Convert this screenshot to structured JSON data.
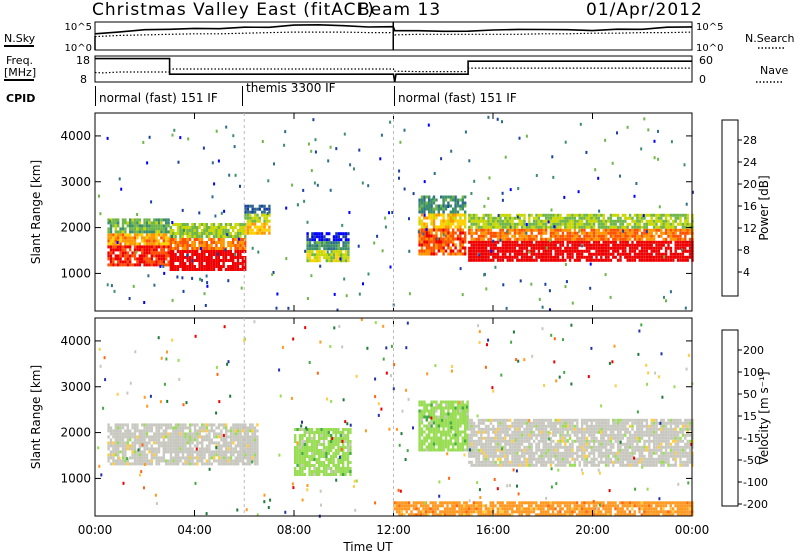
{
  "header": {
    "radar": "Christmas Valley East (fitACF)",
    "beam": "Beam 13",
    "date": "01/Apr/2012"
  },
  "params": {
    "nsky_label": "N.Sky",
    "nsky_ticks": [
      "10^5",
      "10^0"
    ],
    "nsearch_label": "N.Search",
    "nsearch_ticks": [
      "10^5",
      "10^0"
    ],
    "freq_label": "Freq.",
    "freq_unit": "[MHz]",
    "freq_ticks": [
      "18",
      "8"
    ],
    "nave_label": "Nave",
    "nave_ticks": [
      "60",
      "0"
    ],
    "cpid_label": "CPID",
    "cpid_segments": [
      "normal (fast) 151 IF",
      "themis 3300 IF",
      "normal (fast) 151 IF"
    ]
  },
  "axes": {
    "xlabel": "Time UT",
    "ylabel": "Slant Range [km]",
    "x_ticks": [
      "00:00",
      "04:00",
      "08:00",
      "12:00",
      "16:00",
      "20:00",
      "00:00"
    ],
    "y_ticks": [
      "4000",
      "3000",
      "2000",
      "1000"
    ]
  },
  "colorbars": {
    "power": {
      "label": "Power [dB]",
      "ticks": [
        "28",
        "24",
        "20",
        "16",
        "12",
        "8",
        "4"
      ],
      "colors": [
        "#0000ff",
        "#1a3fa0",
        "#2e6e8a",
        "#3d8f6b",
        "#6fb64a",
        "#c8d800",
        "#ffd000",
        "#ff9500",
        "#ff5000",
        "#ee0000"
      ]
    },
    "velocity": {
      "label": "Velocity [m s⁻¹]",
      "ticks": [
        "200",
        "100",
        "50",
        "15",
        "-15",
        "-50",
        "-100",
        "-200"
      ],
      "colors": [
        "#2233aa",
        "#1e7a3a",
        "#44aa44",
        "#99dd55",
        "#c8c8c0",
        "#ffcc44",
        "#ff9922",
        "#ff6611",
        "#ee0000"
      ]
    }
  },
  "chart_data": [
    {
      "type": "line",
      "title": "N.Sky / N.Search",
      "x_hours": [
        0,
        1,
        2,
        3,
        4,
        5,
        6,
        7,
        8,
        9,
        10,
        11,
        11.99,
        12.05,
        13,
        14,
        15,
        16,
        17,
        18,
        19,
        20,
        21,
        22,
        23,
        24
      ],
      "series": [
        {
          "name": "N.Sky",
          "values_log10": [
            3.0,
            3.4,
            3.6,
            3.8,
            3.9,
            4.0,
            4.1,
            4.2,
            4.3,
            4.3,
            4.2,
            4.1,
            4.1,
            3.3,
            3.4,
            3.5,
            3.5,
            3.4,
            3.5,
            3.5,
            3.6,
            3.6,
            3.7,
            3.8,
            3.9,
            4.0
          ]
        },
        {
          "name": "N.Search",
          "values_log10": [
            2.4,
            2.6,
            2.7,
            2.8,
            2.9,
            2.9,
            3.0,
            3.1,
            3.2,
            3.2,
            3.2,
            3.1,
            3.1,
            2.7,
            2.8,
            2.8,
            2.8,
            2.8,
            2.8,
            2.9,
            2.9,
            3.0,
            3.0,
            3.1,
            3.1,
            3.2
          ]
        }
      ],
      "ylim": [
        0,
        5
      ]
    },
    {
      "type": "line",
      "title": "Freq / Nave",
      "series": [
        {
          "name": "Freq",
          "x_hours": [
            0,
            3,
            3,
            12,
            12.05,
            12.1,
            15,
            15,
            24
          ],
          "values": [
            17,
            17,
            11,
            11,
            8,
            11,
            11,
            16,
            16
          ]
        },
        {
          "name": "Nave",
          "x_hours": [
            0,
            0.3,
            1,
            2,
            3,
            3,
            6,
            8,
            10,
            12,
            12,
            13,
            15,
            15,
            18,
            21,
            24
          ],
          "values": [
            22,
            21,
            23,
            23,
            23,
            30,
            30,
            30,
            30,
            30,
            25,
            24,
            24,
            32,
            32,
            32,
            32
          ]
        }
      ],
      "freq_ylim": [
        8,
        18
      ],
      "nave_ylim": [
        0,
        60
      ]
    },
    {
      "type": "heatmap",
      "title": "Power [dB]",
      "x_range_hours": [
        0,
        24
      ],
      "y_range_km": [
        180,
        4500
      ],
      "bands": [
        {
          "t_start": 0.5,
          "t_end": 3.0,
          "range_start_km": 1200,
          "range_end_km": 2200,
          "power_db": 22
        },
        {
          "t_start": 3.0,
          "t_end": 6.0,
          "range_start_km": 1100,
          "range_end_km": 2100,
          "power_db": 24
        },
        {
          "t_start": 6.0,
          "t_end": 7.0,
          "range_start_km": 1900,
          "range_end_km": 2500,
          "power_db": 16
        },
        {
          "t_start": 8.5,
          "t_end": 10.2,
          "range_start_km": 1300,
          "range_end_km": 1900,
          "power_db": 12
        },
        {
          "t_start": 13.0,
          "t_end": 14.9,
          "range_start_km": 1400,
          "range_end_km": 2700,
          "power_db": 20
        },
        {
          "t_start": 15.0,
          "t_end": 24.0,
          "range_start_km": 1300,
          "range_end_km": 2300,
          "power_db": 24
        }
      ]
    },
    {
      "type": "heatmap",
      "title": "Velocity [m s-1]",
      "x_range_hours": [
        0,
        24
      ],
      "y_range_km": [
        180,
        4500
      ],
      "bands": [
        {
          "t_start": 0.5,
          "t_end": 6.5,
          "range_start_km": 1300,
          "range_end_km": 2200,
          "velocity": 0
        },
        {
          "t_start": 8.0,
          "t_end": 10.3,
          "range_start_km": 1100,
          "range_end_km": 2100,
          "velocity": 30
        },
        {
          "t_start": 13.0,
          "t_end": 15.0,
          "range_start_km": 1600,
          "range_end_km": 2700,
          "velocity": 25
        },
        {
          "t_start": 15.0,
          "t_end": 24.0,
          "range_start_km": 1300,
          "range_end_km": 2300,
          "velocity": 0
        },
        {
          "t_start": 12.0,
          "t_end": 24.0,
          "range_start_km": 180,
          "range_end_km": 500,
          "velocity": -60
        }
      ]
    }
  ]
}
